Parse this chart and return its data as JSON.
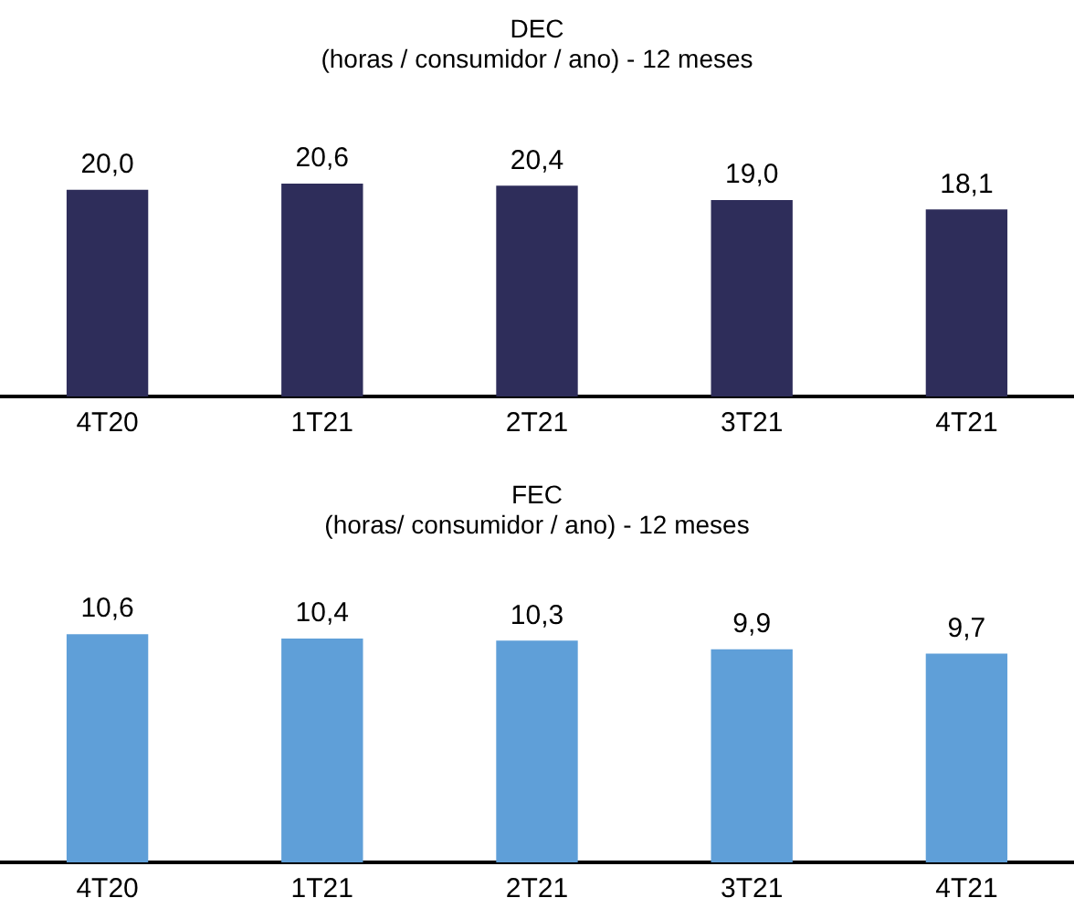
{
  "chart_data": [
    {
      "type": "bar",
      "title": "DEC",
      "subtitle": "(horas / consumidor / ano) - 12 meses",
      "categories": [
        "4T20",
        "1T21",
        "2T21",
        "3T21",
        "4T21"
      ],
      "values": [
        20.0,
        20.6,
        20.4,
        19.0,
        18.1
      ],
      "value_labels": [
        "20,0",
        "20,6",
        "20,4",
        "19,0",
        "18,1"
      ],
      "color": "#2e2d5a",
      "grid": false,
      "legend": false,
      "tick_labels": "x"
    },
    {
      "type": "bar",
      "title": "FEC",
      "subtitle": "(horas/ consumidor / ano) - 12 meses",
      "categories": [
        "4T20",
        "1T21",
        "2T21",
        "3T21",
        "4T21"
      ],
      "values": [
        10.6,
        10.4,
        10.3,
        9.9,
        9.7
      ],
      "value_labels": [
        "10,6",
        "10,4",
        "10,3",
        "9,9",
        "9,7"
      ],
      "color": "#5f9fd8",
      "grid": false,
      "legend": false,
      "tick_labels": "x"
    }
  ]
}
